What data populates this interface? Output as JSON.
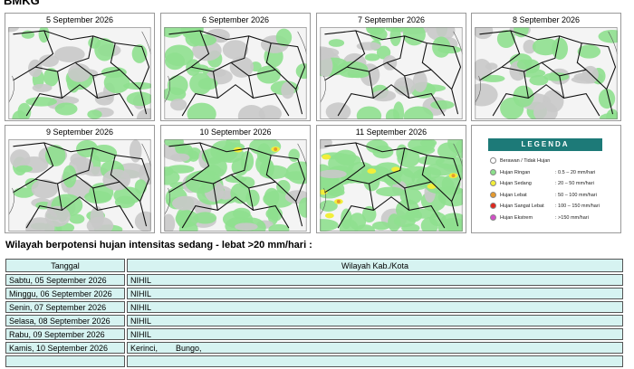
{
  "header": {
    "title": "BMKG"
  },
  "maps": [
    {
      "date": "5 September 2026"
    },
    {
      "date": "6 September 2026"
    },
    {
      "date": "7 September 2026"
    },
    {
      "date": "8 September 2026"
    },
    {
      "date": "9 September 2026"
    },
    {
      "date": "10 September 2026"
    },
    {
      "date": "11 September 2026"
    }
  ],
  "legend": {
    "title": "LEGENDA",
    "items": [
      {
        "label": "Berawan / Tidak Hujan",
        "range": "",
        "color": "#ffffff"
      },
      {
        "label": "Hujan Ringan",
        "range": ": 0.5 – 20 mm/hari",
        "color": "#8be08b"
      },
      {
        "label": "Hujan Sedang",
        "range": ": 20 – 50 mm/hari",
        "color": "#f2ee3a"
      },
      {
        "label": "Hujan Lebat",
        "range": ": 50 – 100 mm/hari",
        "color": "#e69a2e"
      },
      {
        "label": "Hujan Sangat Lebat",
        "range": ": 100 – 150 mm/hari",
        "color": "#e0261d"
      },
      {
        "label": "Hujan Ekstrem",
        "range": ": >150 mm/hari",
        "color": "#d24fc7"
      }
    ]
  },
  "heading": "Wilayah berpotensi hujan intensitas sedang - lebat >20 mm/hari :",
  "table": {
    "columns": [
      "Tanggal",
      "Wilayah Kab./Kota"
    ],
    "rows": [
      [
        "Sabtu, 05 September 2026",
        "NIHIL"
      ],
      [
        "Minggu, 06 September 2026",
        "NIHIL"
      ],
      [
        "Senin, 07 September 2026",
        "NIHIL"
      ],
      [
        "Selasa, 08 September 2026",
        "NIHIL"
      ],
      [
        "Rabu, 09 September 2026",
        "NIHIL"
      ],
      [
        "Kamis, 10 September 2026",
        "Kerinci,        Bungo,"
      ]
    ]
  }
}
